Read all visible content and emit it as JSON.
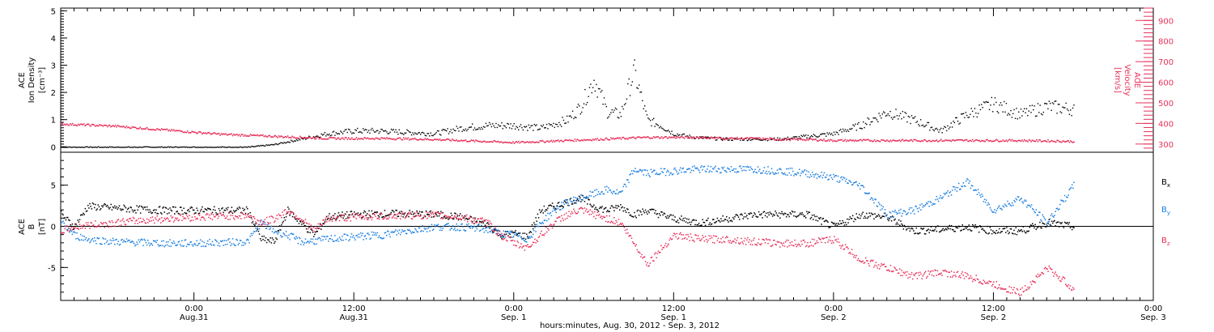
{
  "title": "",
  "bottom_caption": "hours:minutes, Aug. 30, 2012 - Sep.  3, 2012",
  "time_ticks": [
    {
      "hm": "0:00",
      "day": "Aug.31"
    },
    {
      "hm": "12:00",
      "day": "Aug.31"
    },
    {
      "hm": "0:00",
      "day": "Sep. 1"
    },
    {
      "hm": "12:00",
      "day": "Sep. 1"
    },
    {
      "hm": "0:00",
      "day": "Sep. 2"
    },
    {
      "hm": "12:00",
      "day": "Sep. 2"
    },
    {
      "hm": "0:00",
      "day": "Sep. 3"
    }
  ],
  "colors": {
    "black": "#000000",
    "pink": "#e8305a",
    "blue": "#1b7fe0"
  },
  "chart_data": [
    {
      "type": "scatter",
      "panel": "top",
      "xlabel": "hours:minutes, Aug. 30, 2012 - Sep.  3, 2012",
      "x_unit": "hours since 2012-08-30 00:00",
      "xlim": [
        14,
        96
      ],
      "ylabel_left": [
        "ACE",
        "Ion Density",
        "[cm⁻³]"
      ],
      "ylabel_right": [
        "ACE",
        "Velocity",
        "[km/s]"
      ],
      "ylim_left": [
        -0.2,
        5.1
      ],
      "ylim_right": [
        260,
        960
      ],
      "yticks_left": [
        "0",
        "1",
        "2",
        "3",
        "4",
        "5"
      ],
      "yticks_right": [
        "300",
        "400",
        "500",
        "600",
        "700",
        "800",
        "900"
      ],
      "grid": false,
      "series": [
        {
          "name": "Ion Density",
          "color": "#000000",
          "axis": "left",
          "x": [
            14,
            16,
            18,
            20,
            22,
            24,
            26,
            28,
            30,
            31,
            32,
            33,
            34,
            36,
            38,
            40,
            42,
            44,
            46,
            48,
            50,
            52,
            53,
            54,
            55,
            56,
            57,
            58,
            59,
            60,
            61,
            62,
            64,
            66,
            68,
            70,
            72,
            74,
            76,
            78,
            80,
            82,
            84,
            86,
            88,
            90
          ],
          "y": [
            0,
            0,
            0,
            0,
            0,
            0,
            0,
            0,
            0.1,
            0.2,
            0.3,
            0.4,
            0.5,
            0.6,
            0.6,
            0.55,
            0.5,
            0.7,
            0.8,
            0.8,
            0.7,
            1.0,
            1.5,
            2.5,
            1.3,
            1.2,
            2.8,
            1.0,
            0.8,
            0.5,
            0.4,
            0.35,
            0.3,
            0.3,
            0.3,
            0.4,
            0.5,
            0.8,
            1.3,
            1.0,
            0.6,
            1.2,
            1.6,
            1.2,
            1.5,
            1.4
          ]
        },
        {
          "name": "Velocity",
          "color": "#e8305a",
          "axis": "right",
          "x": [
            14,
            16,
            18,
            20,
            22,
            24,
            26,
            28,
            30,
            32,
            34,
            36,
            38,
            40,
            42,
            44,
            46,
            48,
            50,
            52,
            54,
            56,
            58,
            60,
            62,
            64,
            66,
            68,
            70,
            72,
            74,
            76,
            78,
            80,
            82,
            84,
            86,
            88,
            90
          ],
          "y": [
            400,
            395,
            390,
            380,
            370,
            360,
            350,
            345,
            340,
            335,
            330,
            330,
            330,
            328,
            325,
            320,
            315,
            310,
            315,
            320,
            325,
            330,
            335,
            335,
            335,
            330,
            330,
            325,
            325,
            320,
            320,
            320,
            320,
            320,
            320,
            320,
            320,
            318,
            315
          ]
        }
      ]
    },
    {
      "type": "scatter",
      "panel": "bottom",
      "xlabel": "hours:minutes, Aug. 30, 2012 - Sep.  3, 2012",
      "x_unit": "hours since 2012-08-30 00:00",
      "xlim": [
        14,
        96
      ],
      "ylabel_left": [
        "ACE",
        "B",
        "[nT]"
      ],
      "ylim": [
        -9,
        9
      ],
      "yticks": [
        "-5",
        "0",
        "5"
      ],
      "grid": false,
      "series": [
        {
          "name": "Bx",
          "label": "B",
          "label_sub": "x",
          "color": "#000000",
          "x": [
            14,
            15,
            16,
            18,
            20,
            22,
            24,
            26,
            28,
            29,
            30,
            31,
            32,
            33,
            34,
            36,
            38,
            40,
            42,
            44,
            46,
            47,
            48,
            49,
            50,
            51,
            52,
            53,
            54,
            55,
            56,
            57,
            58,
            60,
            62,
            64,
            66,
            68,
            70,
            72,
            74,
            76,
            78,
            80,
            82,
            84,
            86,
            88,
            90
          ],
          "y": [
            1.5,
            0,
            2.5,
            2.3,
            2.1,
            2.0,
            2.0,
            2.0,
            2.0,
            -1.5,
            -1.8,
            2.0,
            0.5,
            -1.0,
            1.2,
            1.5,
            1.6,
            1.6,
            1.5,
            1.2,
            0.3,
            -1.0,
            -0.8,
            -1.2,
            2.0,
            2.5,
            3.0,
            3.5,
            2.5,
            2.0,
            2.5,
            1.5,
            2.0,
            1.0,
            0.5,
            1.0,
            1.5,
            1.5,
            1.5,
            0.0,
            1.5,
            1.2,
            -0.5,
            -0.3,
            0.0,
            -0.5,
            -0.5,
            0.5,
            0.0
          ]
        },
        {
          "name": "By",
          "label": "B",
          "label_sub": "y",
          "color": "#1b7fe0",
          "x": [
            14,
            15,
            16,
            18,
            20,
            22,
            24,
            26,
            28,
            29,
            30,
            31,
            32,
            33,
            34,
            36,
            38,
            40,
            42,
            44,
            46,
            47,
            48,
            49,
            50,
            51,
            52,
            53,
            54,
            55,
            56,
            57,
            58,
            60,
            62,
            64,
            66,
            68,
            70,
            72,
            74,
            76,
            78,
            80,
            82,
            84,
            86,
            88,
            90
          ],
          "y": [
            0.5,
            -1.0,
            -1.5,
            -1.8,
            -1.9,
            -2.0,
            -2.0,
            -1.9,
            -1.8,
            0.5,
            -0.5,
            -1.0,
            -1.8,
            -1.7,
            -1.5,
            -1.2,
            -1.0,
            -0.5,
            0,
            0,
            -0.3,
            -0.8,
            -1.0,
            -1.5,
            0.5,
            2.0,
            3.0,
            3.5,
            4.0,
            4.5,
            4.0,
            7.0,
            6.5,
            6.8,
            7.0,
            7.0,
            7.0,
            6.8,
            6.5,
            6.0,
            5.0,
            1.5,
            2.0,
            3.5,
            5.5,
            2.0,
            3.5,
            0.5,
            5.0
          ]
        },
        {
          "name": "Bz",
          "label": "B",
          "label_sub": "z",
          "color": "#e8305a",
          "x": [
            14,
            15,
            16,
            18,
            20,
            22,
            24,
            26,
            28,
            29,
            30,
            31,
            32,
            33,
            34,
            36,
            38,
            40,
            42,
            44,
            46,
            47,
            48,
            49,
            50,
            51,
            52,
            53,
            54,
            55,
            56,
            57,
            58,
            60,
            62,
            64,
            66,
            68,
            70,
            72,
            74,
            76,
            78,
            80,
            82,
            84,
            86,
            88,
            90
          ],
          "y": [
            -0.5,
            0,
            0.2,
            0.5,
            0.8,
            1.0,
            1.2,
            1.3,
            1.4,
            0.5,
            1.0,
            2.0,
            1.0,
            -0.5,
            1.0,
            1.2,
            1.3,
            1.4,
            1.4,
            1.2,
            0.5,
            -1.0,
            -2.0,
            -2.5,
            -1.0,
            0.5,
            1.5,
            2.0,
            1.5,
            1.0,
            0.5,
            -2.0,
            -4.5,
            -1.0,
            -1.5,
            -1.5,
            -1.8,
            -2.0,
            -2.0,
            -1.5,
            -4.0,
            -5.0,
            -6.0,
            -5.5,
            -6.0,
            -7.0,
            -8.0,
            -5.0,
            -7.5
          ]
        }
      ]
    }
  ]
}
